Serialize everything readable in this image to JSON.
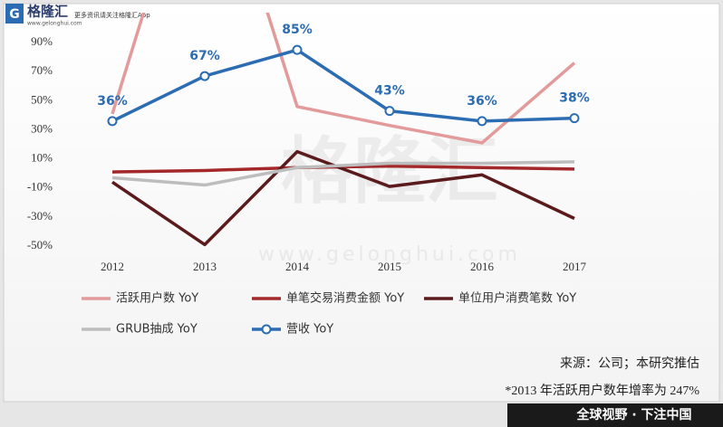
{
  "header": {
    "logo": "格隆汇",
    "site": "www.gelonghui.com",
    "slogan": "更多资讯请关注格隆汇App"
  },
  "watermark": {
    "logo": "格隆汇",
    "site": "www.gelonghui.com"
  },
  "chart_data": {
    "type": "line",
    "categories": [
      "2012",
      "2013",
      "2014",
      "2015",
      "2016",
      "2017"
    ],
    "ylim": [
      -50,
      110
    ],
    "yticks": [
      {
        "value": -50,
        "label": "-50%"
      },
      {
        "value": -30,
        "label": "-30%"
      },
      {
        "value": -10,
        "label": "-10%"
      },
      {
        "value": 10,
        "label": "10%"
      },
      {
        "value": 30,
        "label": "30%"
      },
      {
        "value": 50,
        "label": "50%"
      },
      {
        "value": 70,
        "label": "70%"
      },
      {
        "value": 90,
        "label": "90%"
      }
    ],
    "grid": false,
    "series": [
      {
        "name": "活跃用户数 YoY",
        "color": "#e39a9a",
        "values": [
          41,
          247,
          46,
          33,
          21,
          76
        ]
      },
      {
        "name": "单笔交易消费金额 YoY",
        "color": "#a3282a",
        "values": [
          1,
          2,
          4,
          5,
          4,
          3
        ]
      },
      {
        "name": "单位用户消费笔数 YoY",
        "color": "#5b1a1c",
        "values": [
          -6,
          -49,
          15,
          -9,
          -1,
          -31
        ]
      },
      {
        "name": "GRUB抽成 YoY",
        "color": "#bdbdbd",
        "values": [
          -3,
          -8,
          4,
          7,
          7,
          8
        ]
      },
      {
        "name": "营收 YoY",
        "color": "#2b6cb3",
        "marker": "circle",
        "values": [
          36,
          67,
          85,
          43,
          36,
          38
        ],
        "value_labels": [
          "36%",
          "67%",
          "85%",
          "43%",
          "36%",
          "38%"
        ]
      }
    ],
    "source": "来源：公司；本研究推估",
    "note": "*2013 年活跃用户数年增率为 247%"
  },
  "footer": "全球视野 · 下注中国"
}
